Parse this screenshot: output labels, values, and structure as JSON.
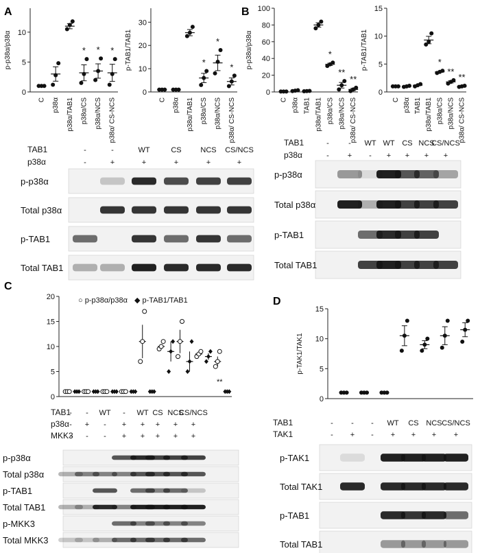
{
  "panels": {
    "A": {
      "letter": "A",
      "charts": [
        {
          "ylabel": "p-p38α/p38α",
          "yticks": [
            "0",
            "5",
            "10"
          ],
          "ylim": [
            0,
            14
          ],
          "categories": [
            "C",
            "p38α",
            "p38α/TAB1",
            "p38α/CS",
            "p38α/NCS",
            "p38α/ CS-NCS"
          ],
          "values": [
            1,
            3,
            11,
            3.2,
            3.5,
            3.2
          ],
          "sig": [
            "",
            "",
            "",
            "*",
            "*",
            "*"
          ]
        },
        {
          "ylabel": "p-TAB1/TAB1",
          "yticks": [
            "0",
            "10",
            "20",
            "30"
          ],
          "ylim": [
            0,
            36
          ],
          "categories": [
            "C",
            "p38α",
            "p38α/TAB1",
            "p38α/CS",
            "p38α/NCS",
            "p38α/ CS-NCS"
          ],
          "values": [
            1,
            1,
            25.5,
            6,
            12.5,
            4.5
          ],
          "sig": [
            "",
            "",
            "",
            "*",
            "*",
            "*"
          ]
        }
      ],
      "blot_header": {
        "rows": [
          {
            "label": "TAB1",
            "cells": [
              "-",
              "-",
              "WT",
              "CS",
              "NCS",
              "CS/NCS"
            ]
          },
          {
            "label": "p38α",
            "cells": [
              "-",
              "+",
              "+",
              "+",
              "+",
              "+"
            ]
          }
        ]
      },
      "blot_labels": [
        "p-p38α",
        "Total p38α",
        "p-TAB1",
        "Total TAB1"
      ]
    },
    "B": {
      "letter": "B",
      "charts": [
        {
          "ylabel": "p-p38α/p38α",
          "yticks": [
            "0",
            "20",
            "40",
            "60",
            "80",
            "100"
          ],
          "ylim": [
            0,
            100
          ],
          "categories": [
            "C",
            "p38α",
            "TAB1",
            "p38α/TAB1",
            "p38α/CS",
            "p38α/NCS",
            "p38α/ CS-NCS"
          ],
          "values": [
            0.5,
            1.5,
            1,
            80,
            33,
            8,
            3
          ],
          "sig": [
            "",
            "",
            "",
            "",
            "*",
            "**",
            "**"
          ]
        },
        {
          "ylabel": "p-TAB1/TAB1",
          "yticks": [
            "0",
            "5",
            "10",
            "15"
          ],
          "ylim": [
            0,
            15
          ],
          "categories": [
            "C",
            "p38α",
            "TAB1",
            "p38α/TAB1",
            "p38α/CS",
            "p38α/NCS",
            "p38α/ CS-NCS"
          ],
          "values": [
            1,
            1,
            1.2,
            9.3,
            3.6,
            1.8,
            1
          ],
          "sig": [
            "",
            "",
            "",
            "",
            "*",
            "**",
            "**"
          ]
        }
      ],
      "blot_header": {
        "rows": [
          {
            "label": "TAB1",
            "cells": [
              "-",
              "-",
              "WT",
              "WT",
              "CS",
              "NCS",
              "CS/NCS"
            ]
          },
          {
            "label": "p38α",
            "cells": [
              "-",
              "+",
              "-",
              "+",
              "+",
              "+",
              "+"
            ]
          }
        ]
      },
      "blot_labels": [
        "p-p38α",
        "Total p38α",
        "p-TAB1",
        "Total TAB1"
      ]
    },
    "C": {
      "letter": "C",
      "legend": [
        "○ p-p38α/p38α",
        "◆ p-TAB1/TAB1"
      ],
      "yticks": [
        "0",
        "5",
        "10",
        "15",
        "20"
      ],
      "chart_sig": "**",
      "blot_header": {
        "rows": [
          {
            "label": "TAB1",
            "cells": [
              "-",
              "-",
              "WT",
              "-",
              "WT",
              "CS",
              "NCS",
              "CS/NCS"
            ]
          },
          {
            "label": "p38α",
            "cells": [
              "-",
              "+",
              "-",
              "+",
              "+",
              "+",
              "+",
              "+"
            ]
          },
          {
            "label": "MKK3",
            "cells": [
              "-",
              "-",
              "-",
              "+",
              "+",
              "+",
              "+",
              "+"
            ]
          }
        ]
      },
      "blot_labels": [
        "p-p38α",
        "Total p38α",
        "p-TAB1",
        "Total TAB1",
        "p-MKK3",
        "Total MKK3"
      ]
    },
    "D": {
      "letter": "D",
      "ylabel": "p-TAK1/TAK1",
      "yticks": [
        "0",
        "5",
        "10",
        "15"
      ],
      "blot_header": {
        "rows": [
          {
            "label": "TAB1",
            "cells": [
              "-",
              "-",
              "-",
              "WT",
              "CS",
              "NCS",
              "CS/NCS"
            ]
          },
          {
            "label": "TAK1",
            "cells": [
              "-",
              "+",
              "-",
              "+",
              "+",
              "+",
              "+"
            ]
          }
        ]
      },
      "blot_labels": [
        "p-TAK1",
        "Total TAK1",
        "p-TAB1",
        "Total TAB1"
      ]
    }
  },
  "chart_data": [
    {
      "type": "scatter",
      "ylabel": "p-p38α/p38α",
      "categories": [
        "C",
        "p38α",
        "p38α/TAB1",
        "p38α/CS",
        "p38α/NCS",
        "p38α/ CS-NCS"
      ],
      "ylim": [
        0,
        14
      ],
      "points": [
        [
          1,
          1,
          1
        ],
        [
          1.2,
          2.8,
          4.8
        ],
        [
          10.5,
          11.2,
          11.8
        ],
        [
          1.5,
          3,
          5.5
        ],
        [
          2,
          3.5,
          5.6
        ],
        [
          1.2,
          3,
          5.5
        ]
      ],
      "means": [
        1,
        3,
        11,
        3.2,
        3.5,
        3.2
      ]
    },
    {
      "type": "scatter",
      "ylabel": "p-TAB1/TAB1",
      "categories": [
        "C",
        "p38α",
        "p38α/TAB1",
        "p38α/CS",
        "p38α/NCS",
        "p38α/ CS-NCS"
      ],
      "ylim": [
        0,
        36
      ],
      "points": [
        [
          1,
          1,
          1
        ],
        [
          1,
          1,
          1
        ],
        [
          24,
          25.5,
          28
        ],
        [
          3,
          6,
          9
        ],
        [
          8,
          13,
          18
        ],
        [
          2.5,
          4.5,
          7
        ]
      ],
      "means": [
        1,
        1,
        25.5,
        6,
        12.5,
        4.5
      ]
    },
    {
      "type": "scatter",
      "ylabel": "p-p38α/p38α",
      "categories": [
        "C",
        "p38α",
        "TAB1",
        "p38α/TAB1",
        "p38α/CS",
        "p38α/NCS",
        "p38α/ CS-NCS"
      ],
      "ylim": [
        0,
        100
      ],
      "points": [
        [
          0.5,
          0.5,
          0.5
        ],
        [
          1,
          1.5,
          2
        ],
        [
          0.8,
          1,
          1.2
        ],
        [
          76,
          80,
          84
        ],
        [
          31,
          33,
          35
        ],
        [
          3,
          8,
          13
        ],
        [
          1,
          3,
          5
        ]
      ],
      "means": [
        0.5,
        1.5,
        1,
        80,
        33,
        8,
        3
      ]
    },
    {
      "type": "scatter",
      "ylabel": "p-TAB1/TAB1",
      "categories": [
        "C",
        "p38α",
        "TAB1",
        "p38α/TAB1",
        "p38α/CS",
        "p38α/NCS",
        "p38α/ CS-NCS"
      ],
      "ylim": [
        0,
        15
      ],
      "points": [
        [
          1,
          1,
          1
        ],
        [
          0.9,
          1,
          1.1
        ],
        [
          1,
          1.2,
          1.4
        ],
        [
          8.5,
          9,
          10.5
        ],
        [
          3.4,
          3.6,
          3.8
        ],
        [
          1.5,
          1.8,
          2.1
        ],
        [
          0.9,
          1,
          1.1
        ]
      ],
      "means": [
        1,
        1,
        1.2,
        9.3,
        3.6,
        1.8,
        1
      ]
    },
    {
      "type": "scatter",
      "series": [
        {
          "name": "p-p38α/p38α",
          "marker": "open-circle",
          "points": [
            [
              1,
              1,
              1
            ],
            [
              1,
              1,
              1
            ],
            [
              1,
              1,
              1
            ],
            [
              1,
              1,
              1
            ],
            [
              7,
              11,
              17
            ],
            [
              9.5,
              10,
              11
            ],
            [
              8,
              11,
              15
            ],
            [
              8,
              8.5,
              9
            ],
            [
              6,
              7,
              9
            ]
          ]
        },
        {
          "name": "p-TAB1/TAB1",
          "marker": "filled-diamond",
          "points": [
            [
              1,
              1,
              1
            ],
            [
              1,
              1,
              1
            ],
            [
              1,
              1,
              1
            ],
            [
              1,
              1,
              1
            ],
            [
              1,
              1,
              1
            ],
            [
              5,
              9,
              11
            ],
            [
              5,
              7,
              11
            ],
            [
              7,
              8,
              9
            ],
            [
              1,
              1,
              1
            ]
          ]
        }
      ],
      "ylim": [
        0,
        20
      ]
    },
    {
      "type": "scatter",
      "ylabel": "p-TAK1/TAK1",
      "ylim": [
        0,
        15
      ],
      "points": [
        [
          1,
          1,
          1
        ],
        [
          1,
          1,
          1
        ],
        [
          1,
          1,
          1
        ],
        [
          8,
          10.5,
          13
        ],
        [
          8,
          9,
          10
        ],
        [
          8.5,
          10.5,
          13
        ],
        [
          9.5,
          11.5,
          13
        ]
      ],
      "means": [
        1,
        1,
        1,
        10.5,
        9,
        10.5,
        11.5
      ]
    }
  ]
}
